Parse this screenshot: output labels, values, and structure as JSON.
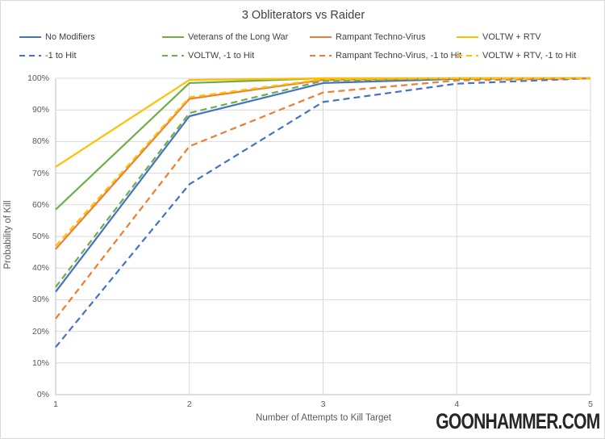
{
  "watermark": "GOONHAMMER.COM",
  "colors": {
    "blue": "#4472C4",
    "green": "#70AD47",
    "orange": "#ED7D31",
    "yellow": "#FFC000",
    "gridline": "#D9D9D9",
    "axis_line": "#BFBFBF",
    "tick_text": "#595959",
    "title_text": "#404040"
  },
  "chart_data": {
    "type": "line",
    "title": "3 Obliterators vs Raider",
    "xlabel": "Number of Attempts to Kill Target",
    "ylabel": "Probability of Kill",
    "x": [
      1,
      2,
      3,
      4,
      5
    ],
    "x_tick_labels": [
      "1",
      "2",
      "3",
      "4",
      "5"
    ],
    "y_tick_labels": [
      "0%",
      "10%",
      "20%",
      "30%",
      "40%",
      "50%",
      "60%",
      "70%",
      "80%",
      "90%",
      "100%"
    ],
    "xlim": [
      1,
      5
    ],
    "ylim": [
      0,
      100
    ],
    "grid": true,
    "legend_position": "top",
    "series": [
      {
        "name": "No Modifiers",
        "color": "#4472C4",
        "dash": false,
        "values": [
          32.5,
          88,
          98.5,
          99.8,
          100
        ]
      },
      {
        "name": "Veterans of the Long War",
        "color": "#70AD47",
        "dash": false,
        "values": [
          58.5,
          98.5,
          100,
          100,
          100
        ]
      },
      {
        "name": "Rampant Techno-Virus",
        "color": "#ED7D31",
        "dash": false,
        "values": [
          46,
          93.5,
          99.5,
          100,
          100
        ]
      },
      {
        "name": "VOLTW + RTV",
        "color": "#FFC000",
        "dash": false,
        "values": [
          72,
          99.5,
          100,
          100,
          100
        ]
      },
      {
        "name": "-1 to Hit",
        "color": "#4472C4",
        "dash": true,
        "values": [
          15,
          66.5,
          92.5,
          98.3,
          100
        ]
      },
      {
        "name": "VOLTW, -1 to Hit",
        "color": "#70AD47",
        "dash": true,
        "values": [
          34,
          89,
          99.2,
          100,
          100
        ]
      },
      {
        "name": "Rampant Techno-Virus, -1 to Hit",
        "color": "#ED7D31",
        "dash": true,
        "values": [
          24,
          78.5,
          95.5,
          99.3,
          100
        ]
      },
      {
        "name": "VOLTW + RTV, -1 to Hit",
        "color": "#FFC000",
        "dash": true,
        "values": [
          47,
          94,
          99.7,
          100,
          100
        ]
      }
    ]
  }
}
